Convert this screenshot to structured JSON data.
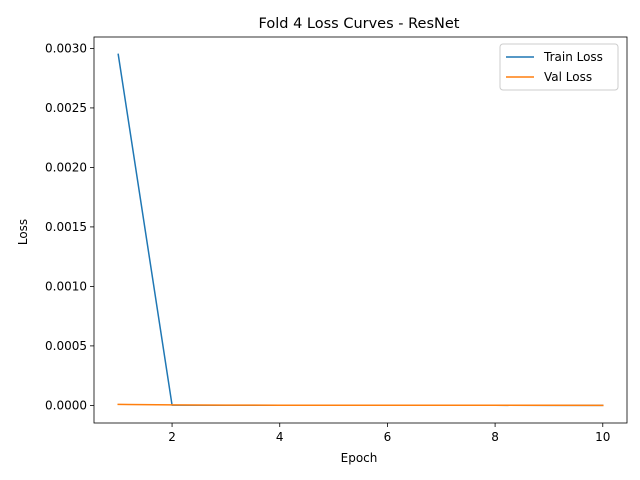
{
  "chart_data": {
    "type": "line",
    "title": "Fold 4 Loss Curves - ResNet",
    "xlabel": "Epoch",
    "ylabel": "Loss",
    "x": [
      1,
      2,
      3,
      4,
      5,
      6,
      7,
      8,
      9,
      10
    ],
    "xlim": [
      0.55,
      10.45
    ],
    "ylim": [
      -0.000148,
      0.003096
    ],
    "xticks": [
      2,
      4,
      6,
      8,
      10
    ],
    "xtick_labels": [
      "2",
      "4",
      "6",
      "8",
      "10"
    ],
    "yticks": [
      0.0,
      0.0005,
      0.001,
      0.0015,
      0.002,
      0.0025,
      0.003
    ],
    "ytick_labels": [
      "0.0000",
      "0.0005",
      "0.0010",
      "0.0015",
      "0.0020",
      "0.0025",
      "0.0030"
    ],
    "grid": false,
    "legend_position": "top-right",
    "series": [
      {
        "name": "Train Loss",
        "color": "#1f77b4",
        "values": [
          0.00295,
          1.8e-06,
          1.2e-06,
          1e-06,
          9e-07,
          8e-07,
          7e-07,
          7e-07,
          6e-07,
          6e-07
        ]
      },
      {
        "name": "Val Loss",
        "color": "#ff7f0e",
        "values": [
          8.5e-06,
          4e-06,
          2e-06,
          1.5e-06,
          1.2e-06,
          1e-06,
          9e-07,
          8e-07,
          7e-07,
          6e-07
        ]
      }
    ]
  }
}
